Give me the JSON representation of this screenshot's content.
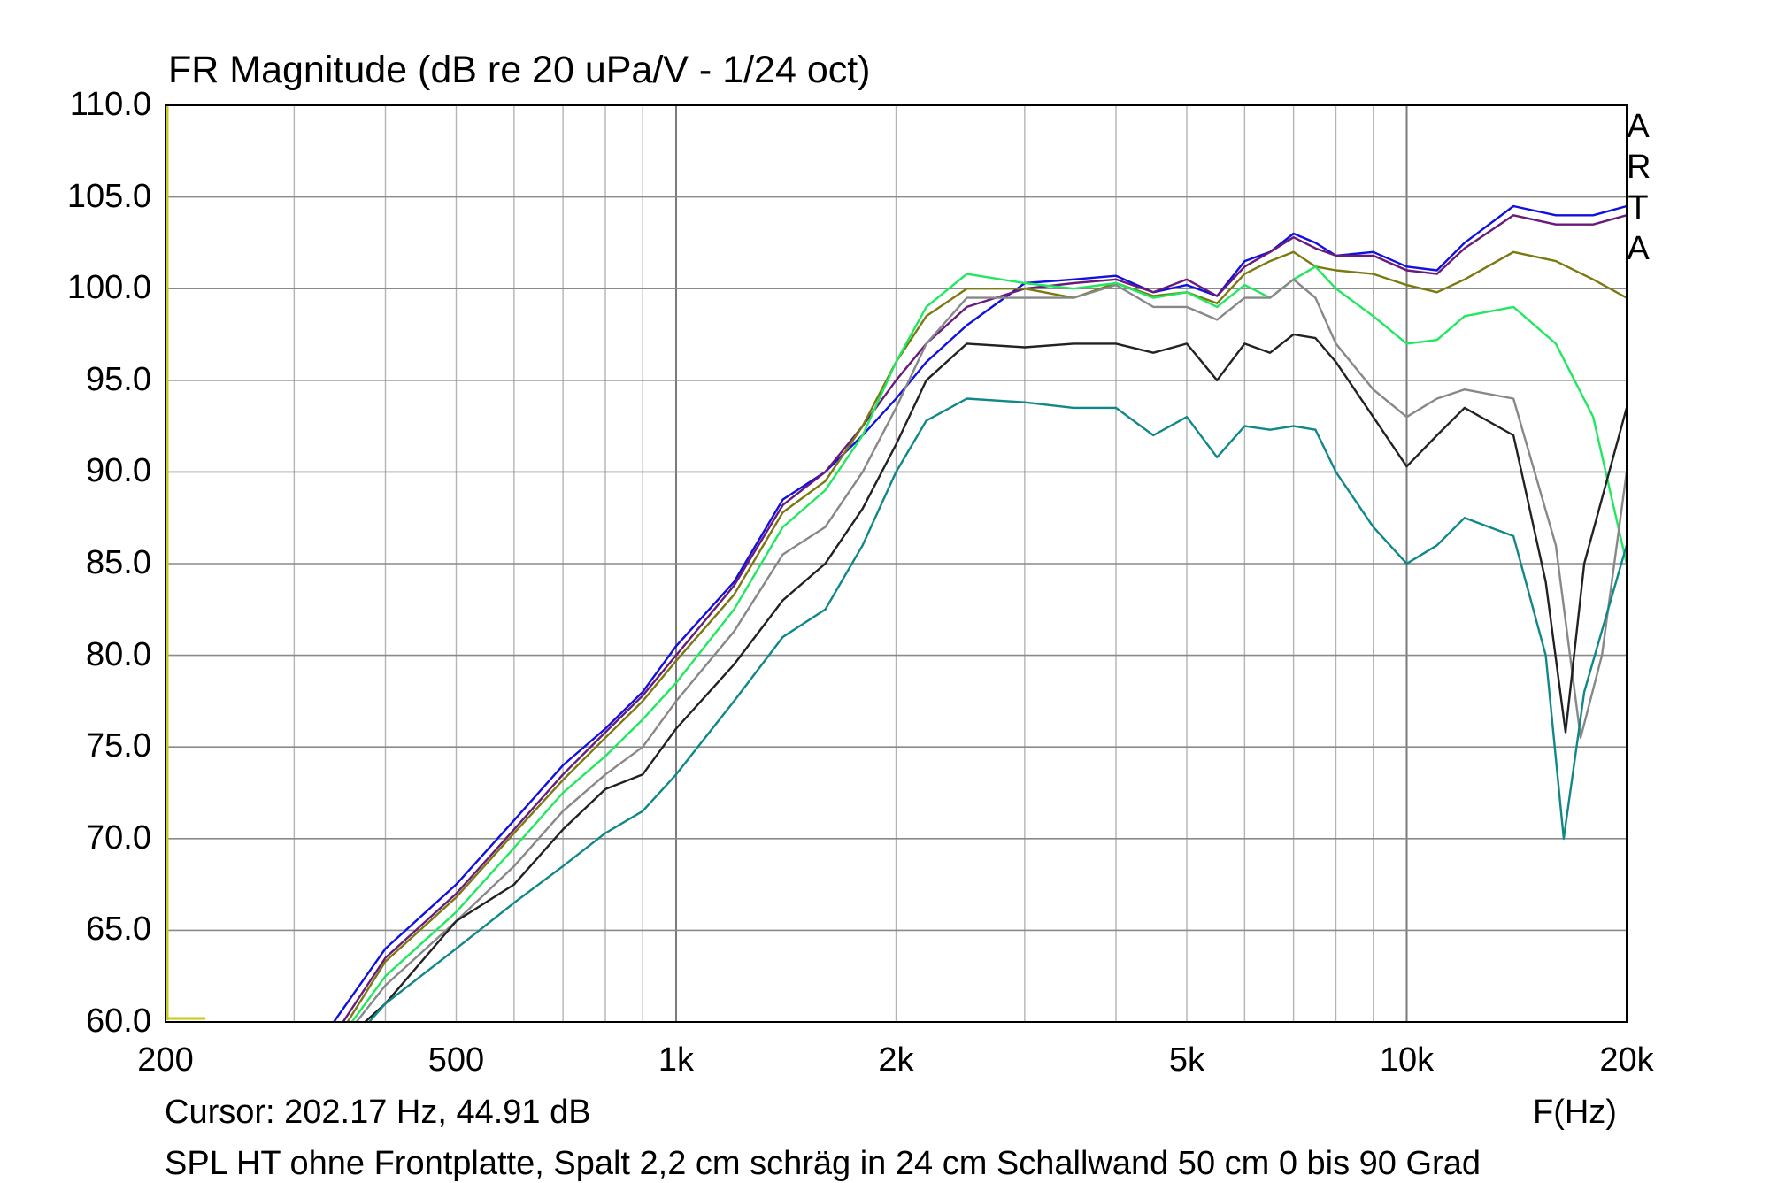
{
  "title": "FR Magnitude (dB re 20 uPa/V - 1/24 oct)",
  "watermark": [
    "A",
    "R",
    "T",
    "A"
  ],
  "cursor_readout": "Cursor: 202.17 Hz, 44.91 dB",
  "x_unit_label": "F(Hz)",
  "description": "SPL HT ohne Frontplatte, Spalt 2,2 cm schräg in 24 cm Schallwand 50 cm 0 bis 90 Grad",
  "chart_data": {
    "type": "line",
    "title": "FR Magnitude (dB re 20 uPa/V - 1/24 oct)",
    "xlabel": "F(Hz)",
    "ylabel": "",
    "x_scale": "log",
    "xlim": [
      200,
      20000
    ],
    "ylim": [
      60,
      110
    ],
    "grid": true,
    "x_ticks": [
      200,
      500,
      1000,
      2000,
      5000,
      10000,
      20000
    ],
    "x_tick_labels": [
      "200",
      "500",
      "1k",
      "2k",
      "5k",
      "10k",
      "20k"
    ],
    "y_ticks": [
      60,
      65,
      70,
      75,
      80,
      85,
      90,
      95,
      100,
      105,
      110
    ],
    "y_tick_labels": [
      "60.0",
      "65.0",
      "70.0",
      "75.0",
      "80.0",
      "85.0",
      "90.0",
      "95.0",
      "100.0",
      "105.0",
      "110.0"
    ],
    "series": [
      {
        "color": "#1010e0",
        "points": [
          [
            340,
            60.0
          ],
          [
            400,
            64.0
          ],
          [
            500,
            67.5
          ],
          [
            600,
            71.0
          ],
          [
            700,
            74.0
          ],
          [
            800,
            76.0
          ],
          [
            900,
            78.0
          ],
          [
            1000,
            80.5
          ],
          [
            1200,
            84.0
          ],
          [
            1400,
            88.5
          ],
          [
            1600,
            90.0
          ],
          [
            1800,
            92.0
          ],
          [
            2000,
            94.0
          ],
          [
            2200,
            96.0
          ],
          [
            2500,
            98.0
          ],
          [
            3000,
            100.3
          ],
          [
            3500,
            100.5
          ],
          [
            4000,
            100.7
          ],
          [
            4500,
            99.8
          ],
          [
            5000,
            100.2
          ],
          [
            5500,
            99.6
          ],
          [
            6000,
            101.5
          ],
          [
            6500,
            102.0
          ],
          [
            7000,
            103.0
          ],
          [
            7500,
            102.5
          ],
          [
            8000,
            101.8
          ],
          [
            9000,
            102.0
          ],
          [
            10000,
            101.2
          ],
          [
            11000,
            101.0
          ],
          [
            12000,
            102.5
          ],
          [
            14000,
            104.5
          ],
          [
            16000,
            104.0
          ],
          [
            18000,
            104.0
          ],
          [
            20000,
            104.5
          ]
        ]
      },
      {
        "color": "#6a1a7a",
        "points": [
          [
            350,
            60.0
          ],
          [
            400,
            63.5
          ],
          [
            500,
            67.0
          ],
          [
            600,
            70.5
          ],
          [
            700,
            73.5
          ],
          [
            800,
            75.8
          ],
          [
            900,
            77.8
          ],
          [
            1000,
            80.0
          ],
          [
            1200,
            83.8
          ],
          [
            1400,
            88.2
          ],
          [
            1600,
            90.0
          ],
          [
            1800,
            92.5
          ],
          [
            2000,
            95.0
          ],
          [
            2200,
            97.0
          ],
          [
            2500,
            99.0
          ],
          [
            3000,
            100.0
          ],
          [
            3500,
            100.3
          ],
          [
            4000,
            100.5
          ],
          [
            4500,
            99.8
          ],
          [
            5000,
            100.5
          ],
          [
            5500,
            99.6
          ],
          [
            6000,
            101.2
          ],
          [
            6500,
            102.0
          ],
          [
            7000,
            102.8
          ],
          [
            7500,
            102.2
          ],
          [
            8000,
            101.8
          ],
          [
            9000,
            101.8
          ],
          [
            10000,
            101.0
          ],
          [
            11000,
            100.8
          ],
          [
            12000,
            102.2
          ],
          [
            14000,
            104.0
          ],
          [
            16000,
            103.5
          ],
          [
            18000,
            103.5
          ],
          [
            20000,
            104.0
          ]
        ]
      },
      {
        "color": "#7a7a10",
        "points": [
          [
            355,
            60.0
          ],
          [
            400,
            63.3
          ],
          [
            500,
            66.8
          ],
          [
            600,
            70.3
          ],
          [
            700,
            73.2
          ],
          [
            800,
            75.5
          ],
          [
            900,
            77.5
          ],
          [
            1000,
            79.7
          ],
          [
            1200,
            83.3
          ],
          [
            1400,
            87.8
          ],
          [
            1600,
            89.5
          ],
          [
            1800,
            92.5
          ],
          [
            2000,
            96.0
          ],
          [
            2200,
            98.5
          ],
          [
            2500,
            100.0
          ],
          [
            3000,
            100.0
          ],
          [
            3500,
            99.5
          ],
          [
            4000,
            100.3
          ],
          [
            4500,
            99.6
          ],
          [
            5000,
            99.8
          ],
          [
            5500,
            99.2
          ],
          [
            6000,
            100.8
          ],
          [
            6500,
            101.5
          ],
          [
            7000,
            102.0
          ],
          [
            7500,
            101.2
          ],
          [
            8000,
            101.0
          ],
          [
            9000,
            100.8
          ],
          [
            10000,
            100.2
          ],
          [
            11000,
            99.8
          ],
          [
            12000,
            100.5
          ],
          [
            14000,
            102.0
          ],
          [
            16000,
            101.5
          ],
          [
            18000,
            100.5
          ],
          [
            20000,
            99.5
          ]
        ]
      },
      {
        "color": "#20e860",
        "points": [
          [
            360,
            60.0
          ],
          [
            400,
            62.5
          ],
          [
            500,
            66.0
          ],
          [
            600,
            69.5
          ],
          [
            700,
            72.5
          ],
          [
            800,
            74.5
          ],
          [
            900,
            76.5
          ],
          [
            1000,
            78.5
          ],
          [
            1200,
            82.5
          ],
          [
            1400,
            87.0
          ],
          [
            1600,
            89.0
          ],
          [
            1800,
            92.0
          ],
          [
            2000,
            96.0
          ],
          [
            2200,
            99.0
          ],
          [
            2500,
            100.8
          ],
          [
            3000,
            100.3
          ],
          [
            3500,
            100.0
          ],
          [
            4000,
            100.3
          ],
          [
            4500,
            99.5
          ],
          [
            5000,
            99.8
          ],
          [
            5500,
            99.0
          ],
          [
            6000,
            100.2
          ],
          [
            6500,
            99.5
          ],
          [
            7000,
            100.5
          ],
          [
            7500,
            101.2
          ],
          [
            8000,
            100.0
          ],
          [
            9000,
            98.5
          ],
          [
            10000,
            97.0
          ],
          [
            11000,
            97.2
          ],
          [
            12000,
            98.5
          ],
          [
            14000,
            99.0
          ],
          [
            16000,
            97.0
          ],
          [
            18000,
            93.0
          ],
          [
            20000,
            85.0
          ]
        ]
      },
      {
        "color": "#888888",
        "points": [
          [
            365,
            60.0
          ],
          [
            400,
            62.0
          ],
          [
            500,
            65.5
          ],
          [
            600,
            68.5
          ],
          [
            700,
            71.5
          ],
          [
            800,
            73.5
          ],
          [
            900,
            75.0
          ],
          [
            1000,
            77.5
          ],
          [
            1200,
            81.3
          ],
          [
            1400,
            85.5
          ],
          [
            1600,
            87.0
          ],
          [
            1800,
            90.0
          ],
          [
            2000,
            93.5
          ],
          [
            2200,
            97.0
          ],
          [
            2500,
            99.5
          ],
          [
            3000,
            99.5
          ],
          [
            3500,
            99.5
          ],
          [
            4000,
            100.2
          ],
          [
            4500,
            99.0
          ],
          [
            5000,
            99.0
          ],
          [
            5500,
            98.3
          ],
          [
            6000,
            99.5
          ],
          [
            6500,
            99.5
          ],
          [
            7000,
            100.5
          ],
          [
            7500,
            99.5
          ],
          [
            8000,
            97.0
          ],
          [
            9000,
            94.5
          ],
          [
            10000,
            93.0
          ],
          [
            11000,
            94.0
          ],
          [
            12000,
            94.5
          ],
          [
            14000,
            94.0
          ],
          [
            16000,
            86.0
          ],
          [
            17300,
            75.5
          ],
          [
            18500,
            80.0
          ],
          [
            20000,
            90.0
          ]
        ]
      },
      {
        "color": "#222222",
        "points": [
          [
            375,
            60.0
          ],
          [
            400,
            61.0
          ],
          [
            500,
            65.5
          ],
          [
            600,
            67.5
          ],
          [
            700,
            70.5
          ],
          [
            800,
            72.7
          ],
          [
            900,
            73.5
          ],
          [
            1000,
            76.0
          ],
          [
            1200,
            79.5
          ],
          [
            1400,
            83.0
          ],
          [
            1600,
            85.0
          ],
          [
            1800,
            88.0
          ],
          [
            2000,
            91.5
          ],
          [
            2200,
            95.0
          ],
          [
            2500,
            97.0
          ],
          [
            3000,
            96.8
          ],
          [
            3500,
            97.0
          ],
          [
            4000,
            97.0
          ],
          [
            4500,
            96.5
          ],
          [
            5000,
            97.0
          ],
          [
            5500,
            95.0
          ],
          [
            6000,
            97.0
          ],
          [
            6500,
            96.5
          ],
          [
            7000,
            97.5
          ],
          [
            7500,
            97.3
          ],
          [
            8000,
            96.0
          ],
          [
            9000,
            93.0
          ],
          [
            10000,
            90.3
          ],
          [
            11000,
            92.0
          ],
          [
            12000,
            93.5
          ],
          [
            14000,
            92.0
          ],
          [
            15500,
            84.0
          ],
          [
            16500,
            75.8
          ],
          [
            17500,
            85.0
          ],
          [
            20000,
            93.5
          ]
        ]
      },
      {
        "color": "#108888",
        "points": [
          [
            380,
            60.0
          ],
          [
            400,
            61.0
          ],
          [
            500,
            64.0
          ],
          [
            600,
            66.5
          ],
          [
            700,
            68.5
          ],
          [
            800,
            70.3
          ],
          [
            900,
            71.5
          ],
          [
            1000,
            73.5
          ],
          [
            1200,
            77.5
          ],
          [
            1400,
            81.0
          ],
          [
            1600,
            82.5
          ],
          [
            1800,
            86.0
          ],
          [
            2000,
            90.0
          ],
          [
            2200,
            92.8
          ],
          [
            2500,
            94.0
          ],
          [
            3000,
            93.8
          ],
          [
            3500,
            93.5
          ],
          [
            4000,
            93.5
          ],
          [
            4500,
            92.0
          ],
          [
            5000,
            93.0
          ],
          [
            5500,
            90.8
          ],
          [
            6000,
            92.5
          ],
          [
            6500,
            92.3
          ],
          [
            7000,
            92.5
          ],
          [
            7500,
            92.3
          ],
          [
            8000,
            90.0
          ],
          [
            9000,
            87.0
          ],
          [
            10000,
            85.0
          ],
          [
            11000,
            86.0
          ],
          [
            12000,
            87.5
          ],
          [
            14000,
            86.5
          ],
          [
            15500,
            80.0
          ],
          [
            16400,
            70.0
          ],
          [
            17500,
            78.0
          ],
          [
            20000,
            86.0
          ]
        ]
      }
    ]
  }
}
